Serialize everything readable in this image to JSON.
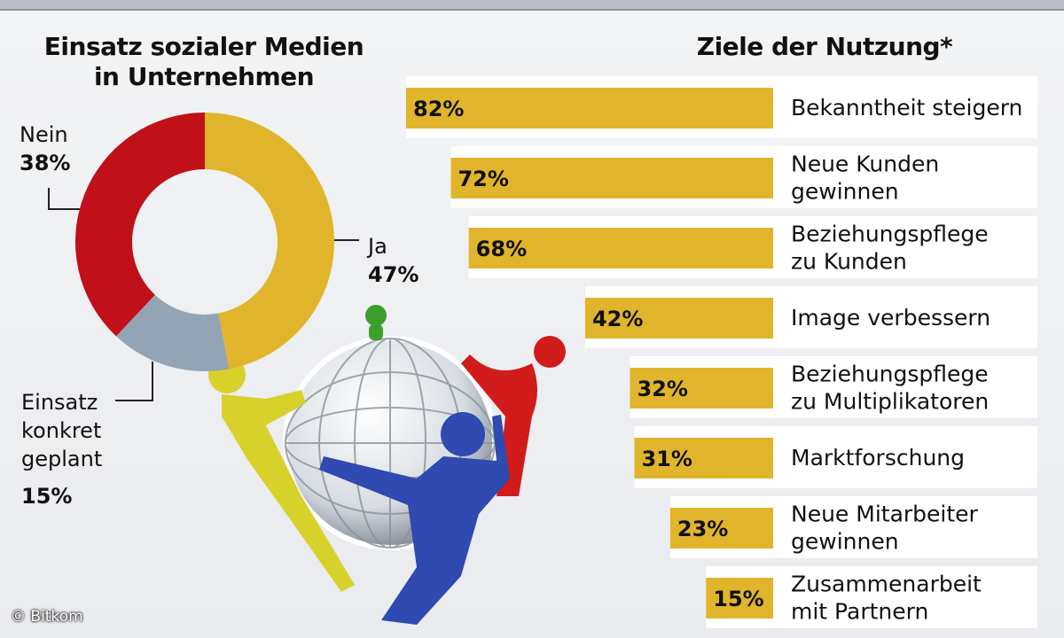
{
  "colors": {
    "ja": "#e1b52b",
    "nein": "#c0101a",
    "geplant": "#93a4b4",
    "bar": "#e1b52b",
    "bar_bg": "#ffffff"
  },
  "chart_data": [
    {
      "type": "pie",
      "title_line1": "Einsatz sozialer Medien",
      "title_line2": "in Unternehmen",
      "slices": [
        {
          "label": "Ja",
          "value": 47,
          "value_label": "47%"
        },
        {
          "label_lines": [
            "Einsatz",
            "konkret",
            "geplant"
          ],
          "value": 15,
          "value_label": "15%"
        },
        {
          "label": "Nein",
          "value": 38,
          "value_label": "38%"
        }
      ]
    },
    {
      "type": "bar",
      "orientation": "horizontal",
      "title": "Ziele der Nutzung*",
      "xlim": [
        0,
        100
      ],
      "categories": [
        [
          "Bekanntheit steigern"
        ],
        [
          "Neue Kunden",
          "gewinnen"
        ],
        [
          "Beziehungspflege",
          "zu Kunden"
        ],
        [
          "Image verbessern"
        ],
        [
          "Beziehungspflege",
          "zu Multiplikatoren"
        ],
        [
          "Marktforschung"
        ],
        [
          "Neue Mitarbeiter",
          "gewinnen"
        ],
        [
          "Zusammenarbeit",
          "mit Partnern"
        ]
      ],
      "values": [
        82,
        72,
        68,
        42,
        32,
        31,
        23,
        15
      ],
      "value_labels": [
        "82%",
        "72%",
        "68%",
        "42%",
        "32%",
        "31%",
        "23%",
        "15%"
      ]
    }
  ],
  "copyright": "© Bitkom"
}
